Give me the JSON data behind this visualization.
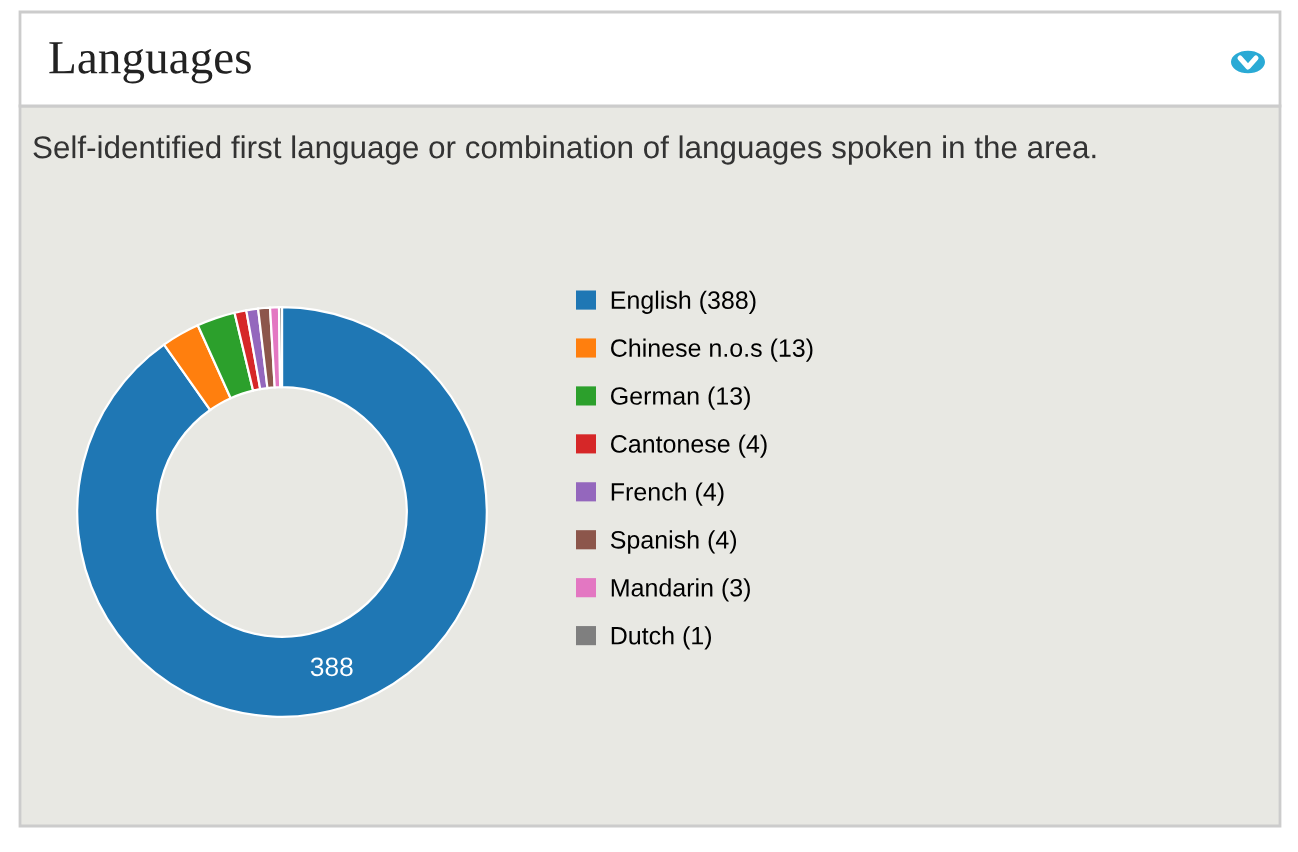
{
  "chart_data": {
    "type": "donut",
    "title": "Languages",
    "subtitle": "Self-identified first language or combination of languages spoken in the area.",
    "categories": [
      "English (388)",
      "Chinese n.o.s (13)",
      "German (13)",
      "Cantonese (4)",
      "French (4)",
      "Spanish (4)",
      "Mandarin (3)",
      "Dutch (1)"
    ],
    "values": [
      388,
      13,
      13,
      4,
      4,
      4,
      3,
      1
    ],
    "colors": [
      "#1f77b4",
      "#ff7f0e",
      "#2ca02c",
      "#d62728",
      "#9467bd",
      "#8c564b",
      "#e377c2",
      "#7f7f7f"
    ],
    "value_labels": [
      "388",
      null,
      null,
      null,
      null,
      null,
      null,
      null
    ],
    "legend": "right"
  }
}
